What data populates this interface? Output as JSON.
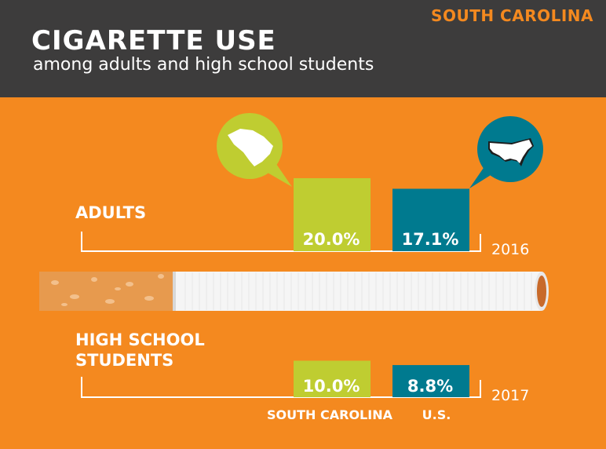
{
  "header": {
    "state": "SOUTH CAROLINA",
    "title": "CIGARETTE USE",
    "subtitle": "among adults and high school students"
  },
  "colors": {
    "background": "#f4891f",
    "header": "#3d3c3c",
    "south_carolina": "#bfcd31",
    "us": "#007a8f"
  },
  "icons": {
    "south_carolina": "south-carolina-map-icon",
    "us": "us-map-icon",
    "divider": "cigarette-illustration"
  },
  "chart_data": {
    "type": "bar",
    "categories": [
      "SOUTH CAROLINA",
      "U.S."
    ],
    "series": [],
    "groups": [
      {
        "label": "ADULTS",
        "year": "2016",
        "values": [
          20.0,
          17.1
        ],
        "value_labels": [
          "20.0%",
          "17.1%"
        ]
      },
      {
        "label_lines": [
          "HIGH SCHOOL",
          "STUDENTS"
        ],
        "year": "2017",
        "values": [
          10.0,
          8.8
        ],
        "value_labels": [
          "10.0%",
          "8.8%"
        ]
      }
    ],
    "unit": "%"
  }
}
